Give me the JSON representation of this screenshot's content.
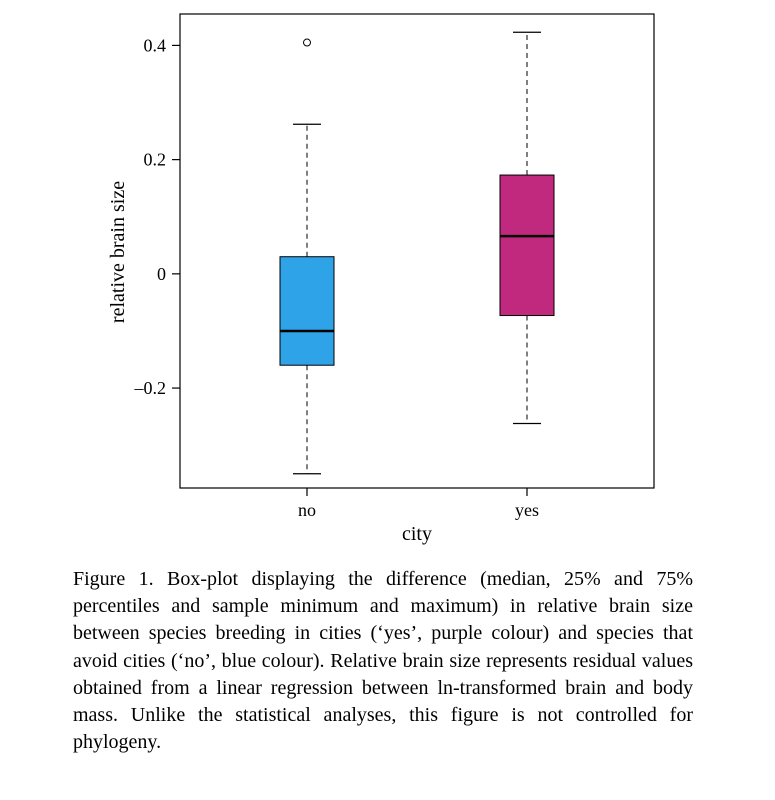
{
  "chart_data": {
    "type": "box",
    "xlabel": "city",
    "ylabel": "relative brain size",
    "categories": [
      "no",
      "yes"
    ],
    "yticks": [
      {
        "value": 0.4,
        "label": "0.4"
      },
      {
        "value": 0.2,
        "label": "0.2"
      },
      {
        "value": 0,
        "label": "0"
      },
      {
        "value": -0.2,
        "label": "–0.2"
      }
    ],
    "ylim": [
      -0.375,
      0.455
    ],
    "boxes": [
      {
        "category": "no",
        "min": -0.35,
        "q1": -0.16,
        "median": -0.1,
        "q3": 0.03,
        "max": 0.262,
        "outliers": [
          0.405
        ],
        "color": "#2ea3e8"
      },
      {
        "category": "yes",
        "min": -0.262,
        "q1": -0.073,
        "median": 0.066,
        "q3": 0.173,
        "max": 0.423,
        "outliers": [],
        "color": "#c0297e"
      }
    ],
    "grid": false
  },
  "caption": "Figure 1. Box-plot displaying the difference (median, 25% and 75% percentiles and sample minimum and maximum) in relative brain size between species breeding in cities (‘yes’, purple colour) and species that avoid cities (‘no’, blue colour). Relative brain size represents residual values obtained from a linear regression between ln-transformed brain and body mass. Unlike the statistical analyses, this figure is not controlled for phylogeny."
}
